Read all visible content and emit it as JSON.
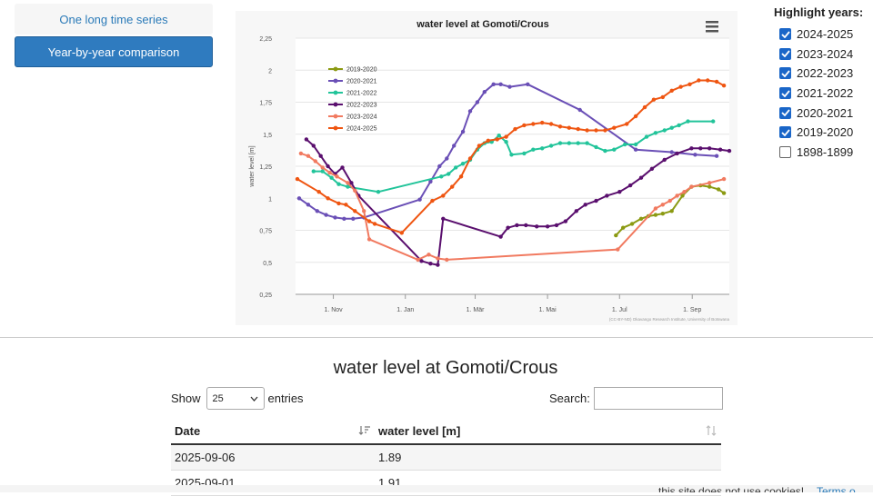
{
  "nav": {
    "tab_timeseries": "One long time series",
    "tab_yearbyyear": "Year-by-year comparison"
  },
  "highlight": {
    "title": "Highlight years:",
    "items": [
      {
        "label": "2024-2025",
        "checked": true
      },
      {
        "label": "2023-2024",
        "checked": true
      },
      {
        "label": "2022-2023",
        "checked": true
      },
      {
        "label": "2021-2022",
        "checked": true
      },
      {
        "label": "2020-2021",
        "checked": true
      },
      {
        "label": "2019-2020",
        "checked": true
      },
      {
        "label": "1898-1899",
        "checked": false
      }
    ]
  },
  "chart_data": {
    "type": "line",
    "title": "water level at Gomoti/Crous",
    "ylabel": "water level [m]",
    "xlabel": "",
    "ylim": [
      0.25,
      2.25
    ],
    "yticks": [
      "0,25",
      "0,5",
      "0,75",
      "1",
      "1,25",
      "1,5",
      "1,75",
      "2",
      "2,25"
    ],
    "xticks": [
      {
        "label": "1. Nov",
        "month": 1.0
      },
      {
        "label": "1. Jan",
        "month": 3.0
      },
      {
        "label": "1. Mär",
        "month": 4.94
      },
      {
        "label": "1. Mai",
        "month": 6.95
      },
      {
        "label": "1. Jul",
        "month": 8.95
      },
      {
        "label": "1. Sep",
        "month": 10.97
      }
    ],
    "xlim": [
      -0.05,
      12.0
    ],
    "grid": true,
    "legend_position": "top-left",
    "credit": "(CC-BY-ND) Okavango Research Institute, University of Botswana",
    "series": [
      {
        "name": "2019-2020",
        "color": "#8b9a12",
        "points": [
          [
            8.85,
            0.71
          ],
          [
            9.05,
            0.77
          ],
          [
            9.3,
            0.8
          ],
          [
            9.55,
            0.84
          ],
          [
            9.75,
            0.86
          ],
          [
            9.95,
            0.87
          ],
          [
            10.15,
            0.88
          ],
          [
            10.4,
            0.9
          ],
          [
            10.7,
            1.02
          ],
          [
            10.95,
            1.09
          ],
          [
            11.2,
            1.1
          ],
          [
            11.45,
            1.09
          ],
          [
            11.7,
            1.07
          ],
          [
            11.85,
            1.04
          ]
        ]
      },
      {
        "name": "2020-2021",
        "color": "#6a4fb6",
        "points": [
          [
            0.05,
            1.0
          ],
          [
            0.3,
            0.95
          ],
          [
            0.55,
            0.9
          ],
          [
            0.8,
            0.87
          ],
          [
            1.05,
            0.85
          ],
          [
            1.3,
            0.84
          ],
          [
            1.55,
            0.84
          ],
          [
            1.85,
            0.85
          ],
          [
            3.4,
            0.99
          ],
          [
            3.7,
            1.13
          ],
          [
            3.95,
            1.25
          ],
          [
            4.15,
            1.31
          ],
          [
            4.35,
            1.41
          ],
          [
            4.6,
            1.52
          ],
          [
            4.8,
            1.68
          ],
          [
            5.0,
            1.75
          ],
          [
            5.2,
            1.83
          ],
          [
            5.45,
            1.89
          ],
          [
            5.65,
            1.89
          ],
          [
            5.9,
            1.87
          ],
          [
            6.4,
            1.89
          ],
          [
            7.85,
            1.69
          ],
          [
            9.4,
            1.38
          ],
          [
            10.4,
            1.36
          ],
          [
            11.05,
            1.34
          ],
          [
            11.65,
            1.33
          ]
        ]
      },
      {
        "name": "2021-2022",
        "color": "#22c49a",
        "points": [
          [
            0.45,
            1.21
          ],
          [
            0.7,
            1.21
          ],
          [
            0.95,
            1.16
          ],
          [
            1.15,
            1.11
          ],
          [
            1.4,
            1.09
          ],
          [
            2.25,
            1.05
          ],
          [
            4.0,
            1.17
          ],
          [
            4.2,
            1.19
          ],
          [
            4.4,
            1.24
          ],
          [
            4.6,
            1.27
          ],
          [
            4.8,
            1.3
          ],
          [
            5.0,
            1.38
          ],
          [
            5.2,
            1.43
          ],
          [
            5.4,
            1.44
          ],
          [
            5.6,
            1.49
          ],
          [
            5.8,
            1.44
          ],
          [
            5.95,
            1.34
          ],
          [
            6.3,
            1.35
          ],
          [
            6.55,
            1.38
          ],
          [
            6.8,
            1.39
          ],
          [
            7.05,
            1.41
          ],
          [
            7.3,
            1.43
          ],
          [
            7.55,
            1.43
          ],
          [
            7.8,
            1.43
          ],
          [
            8.05,
            1.43
          ],
          [
            8.3,
            1.4
          ],
          [
            8.55,
            1.37
          ],
          [
            8.8,
            1.38
          ],
          [
            9.1,
            1.42
          ],
          [
            9.4,
            1.42
          ],
          [
            9.7,
            1.48
          ],
          [
            9.95,
            1.51
          ],
          [
            10.2,
            1.53
          ],
          [
            10.4,
            1.55
          ],
          [
            10.6,
            1.57
          ],
          [
            10.85,
            1.6
          ],
          [
            11.55,
            1.6
          ]
        ]
      },
      {
        "name": "2022-2023",
        "color": "#5a0f6e",
        "points": [
          [
            0.25,
            1.46
          ],
          [
            0.45,
            1.41
          ],
          [
            0.65,
            1.33
          ],
          [
            0.85,
            1.25
          ],
          [
            1.05,
            1.19
          ],
          [
            1.25,
            1.24
          ],
          [
            1.5,
            1.12
          ],
          [
            1.7,
            1.02
          ],
          [
            3.45,
            0.51
          ],
          [
            3.7,
            0.49
          ],
          [
            3.9,
            0.48
          ],
          [
            4.05,
            0.84
          ],
          [
            5.65,
            0.7
          ],
          [
            5.85,
            0.77
          ],
          [
            6.1,
            0.79
          ],
          [
            6.35,
            0.79
          ],
          [
            6.65,
            0.78
          ],
          [
            6.95,
            0.78
          ],
          [
            7.2,
            0.79
          ],
          [
            7.45,
            0.82
          ],
          [
            7.75,
            0.9
          ],
          [
            8.0,
            0.95
          ],
          [
            8.3,
            0.98
          ],
          [
            8.6,
            1.02
          ],
          [
            8.95,
            1.05
          ],
          [
            9.25,
            1.1
          ],
          [
            9.55,
            1.16
          ],
          [
            9.85,
            1.23
          ],
          [
            10.2,
            1.3
          ],
          [
            10.55,
            1.35
          ],
          [
            10.95,
            1.39
          ],
          [
            11.2,
            1.39
          ],
          [
            11.45,
            1.39
          ],
          [
            11.75,
            1.38
          ],
          [
            12.0,
            1.37
          ]
        ]
      },
      {
        "name": "2023-2024",
        "color": "#f17a60",
        "points": [
          [
            0.1,
            1.35
          ],
          [
            0.3,
            1.33
          ],
          [
            0.5,
            1.29
          ],
          [
            0.7,
            1.24
          ],
          [
            0.9,
            1.2
          ],
          [
            1.1,
            1.17
          ],
          [
            1.4,
            1.12
          ],
          [
            1.6,
            1.06
          ],
          [
            1.85,
            0.9
          ],
          [
            2.0,
            0.68
          ],
          [
            3.35,
            0.52
          ],
          [
            3.65,
            0.56
          ],
          [
            3.9,
            0.53
          ],
          [
            4.15,
            0.52
          ],
          [
            8.9,
            0.6
          ],
          [
            9.95,
            0.92
          ],
          [
            10.15,
            0.95
          ],
          [
            10.35,
            0.98
          ],
          [
            10.55,
            1.02
          ],
          [
            10.75,
            1.05
          ],
          [
            10.95,
            1.09
          ],
          [
            11.45,
            1.12
          ],
          [
            11.85,
            1.15
          ]
        ]
      },
      {
        "name": "2024-2025",
        "color": "#ef5511",
        "points": [
          [
            0.0,
            1.15
          ],
          [
            0.6,
            1.05
          ],
          [
            0.85,
            1.0
          ],
          [
            1.15,
            0.96
          ],
          [
            1.35,
            0.95
          ],
          [
            1.6,
            0.9
          ],
          [
            2.0,
            0.82
          ],
          [
            2.15,
            0.8
          ],
          [
            2.9,
            0.73
          ],
          [
            3.75,
            0.98
          ],
          [
            4.05,
            1.02
          ],
          [
            4.3,
            1.09
          ],
          [
            4.55,
            1.17
          ],
          [
            4.8,
            1.31
          ],
          [
            5.05,
            1.41
          ],
          [
            5.3,
            1.45
          ],
          [
            5.55,
            1.46
          ],
          [
            5.8,
            1.48
          ],
          [
            6.05,
            1.54
          ],
          [
            6.3,
            1.57
          ],
          [
            6.55,
            1.58
          ],
          [
            6.8,
            1.59
          ],
          [
            7.05,
            1.58
          ],
          [
            7.3,
            1.56
          ],
          [
            7.55,
            1.55
          ],
          [
            7.8,
            1.54
          ],
          [
            8.05,
            1.53
          ],
          [
            8.3,
            1.53
          ],
          [
            8.55,
            1.53
          ],
          [
            8.8,
            1.55
          ],
          [
            9.15,
            1.58
          ],
          [
            9.4,
            1.64
          ],
          [
            9.65,
            1.71
          ],
          [
            9.9,
            1.77
          ],
          [
            10.15,
            1.79
          ],
          [
            10.4,
            1.84
          ],
          [
            10.65,
            1.87
          ],
          [
            10.9,
            1.89
          ],
          [
            11.15,
            1.92
          ],
          [
            11.4,
            1.92
          ],
          [
            11.65,
            1.91
          ],
          [
            11.85,
            1.88
          ]
        ]
      }
    ]
  },
  "table": {
    "title": "water level at Gomoti/Crous",
    "show_label": "Show",
    "entries_value": "25",
    "entries_label": "entries",
    "search_label": "Search:",
    "search_placeholder": "",
    "columns": [
      "Date",
      "water level [m]"
    ],
    "rows": [
      [
        "2025-09-06",
        "1.89"
      ],
      [
        "2025-09-01",
        "1.91"
      ]
    ]
  },
  "footer": {
    "notice": "this site does not use cookies!",
    "terms": "Terms o"
  }
}
